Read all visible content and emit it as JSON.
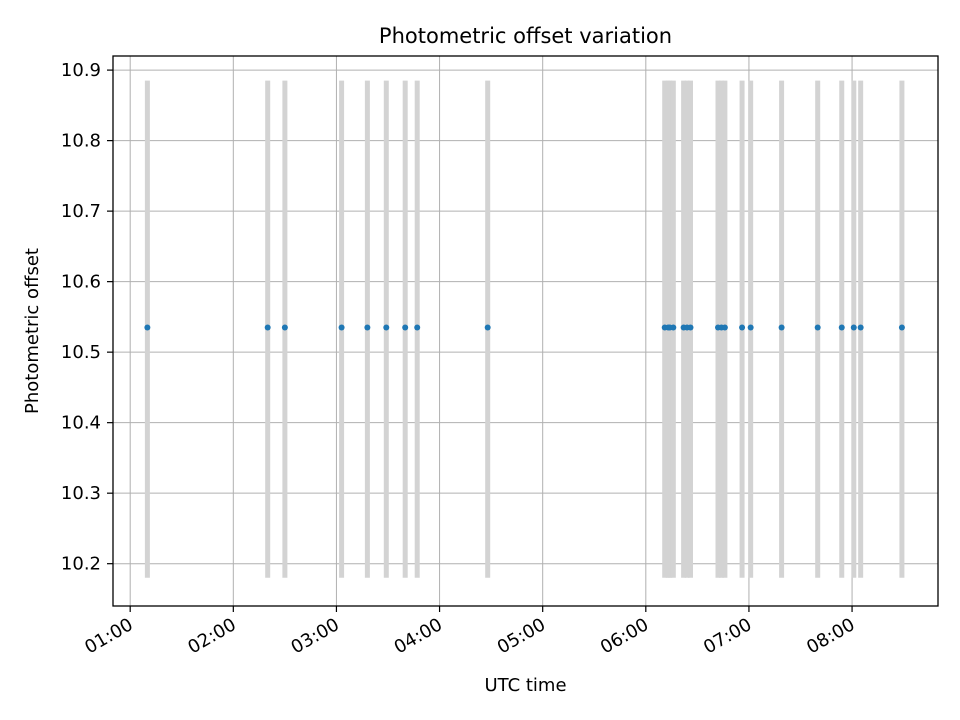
{
  "chart_data": {
    "type": "scatter",
    "title": "Photometric offset variation",
    "xlabel": "UTC time",
    "ylabel": "Photometric offset",
    "grid": true,
    "xlim": [
      "00:50",
      "08:50"
    ],
    "ylim": [
      10.14,
      10.92
    ],
    "x_ticks": [
      "01:00",
      "02:00",
      "03:00",
      "04:00",
      "05:00",
      "06:00",
      "07:00",
      "08:00"
    ],
    "y_ticks": [
      "10.2",
      "10.3",
      "10.4",
      "10.5",
      "10.6",
      "10.7",
      "10.8",
      "10.9"
    ],
    "error_bar": {
      "low": 10.18,
      "high": 10.885
    },
    "colors": {
      "points": "#1f77b4",
      "error_bars": "#d3d3d3",
      "grid": "#b0b0b0",
      "axes": "#000000"
    },
    "points": [
      {
        "x": "01:10",
        "y": 10.535
      },
      {
        "x": "02:20",
        "y": 10.535
      },
      {
        "x": "02:30",
        "y": 10.535
      },
      {
        "x": "03:03",
        "y": 10.535
      },
      {
        "x": "03:18",
        "y": 10.535
      },
      {
        "x": "03:29",
        "y": 10.535
      },
      {
        "x": "03:40",
        "y": 10.535
      },
      {
        "x": "03:47",
        "y": 10.535
      },
      {
        "x": "04:28",
        "y": 10.535
      },
      {
        "x": "06:11",
        "y": 10.535
      },
      {
        "x": "06:13",
        "y": 10.535
      },
      {
        "x": "06:14",
        "y": 10.535
      },
      {
        "x": "06:16",
        "y": 10.535
      },
      {
        "x": "06:22",
        "y": 10.535
      },
      {
        "x": "06:24",
        "y": 10.535
      },
      {
        "x": "06:26",
        "y": 10.535
      },
      {
        "x": "06:42",
        "y": 10.535
      },
      {
        "x": "06:44",
        "y": 10.535
      },
      {
        "x": "06:46",
        "y": 10.535
      },
      {
        "x": "06:56",
        "y": 10.535
      },
      {
        "x": "07:01",
        "y": 10.535
      },
      {
        "x": "07:19",
        "y": 10.535
      },
      {
        "x": "07:40",
        "y": 10.535
      },
      {
        "x": "07:54",
        "y": 10.535
      },
      {
        "x": "08:01",
        "y": 10.535
      },
      {
        "x": "08:05",
        "y": 10.535
      },
      {
        "x": "08:29",
        "y": 10.535
      }
    ]
  }
}
